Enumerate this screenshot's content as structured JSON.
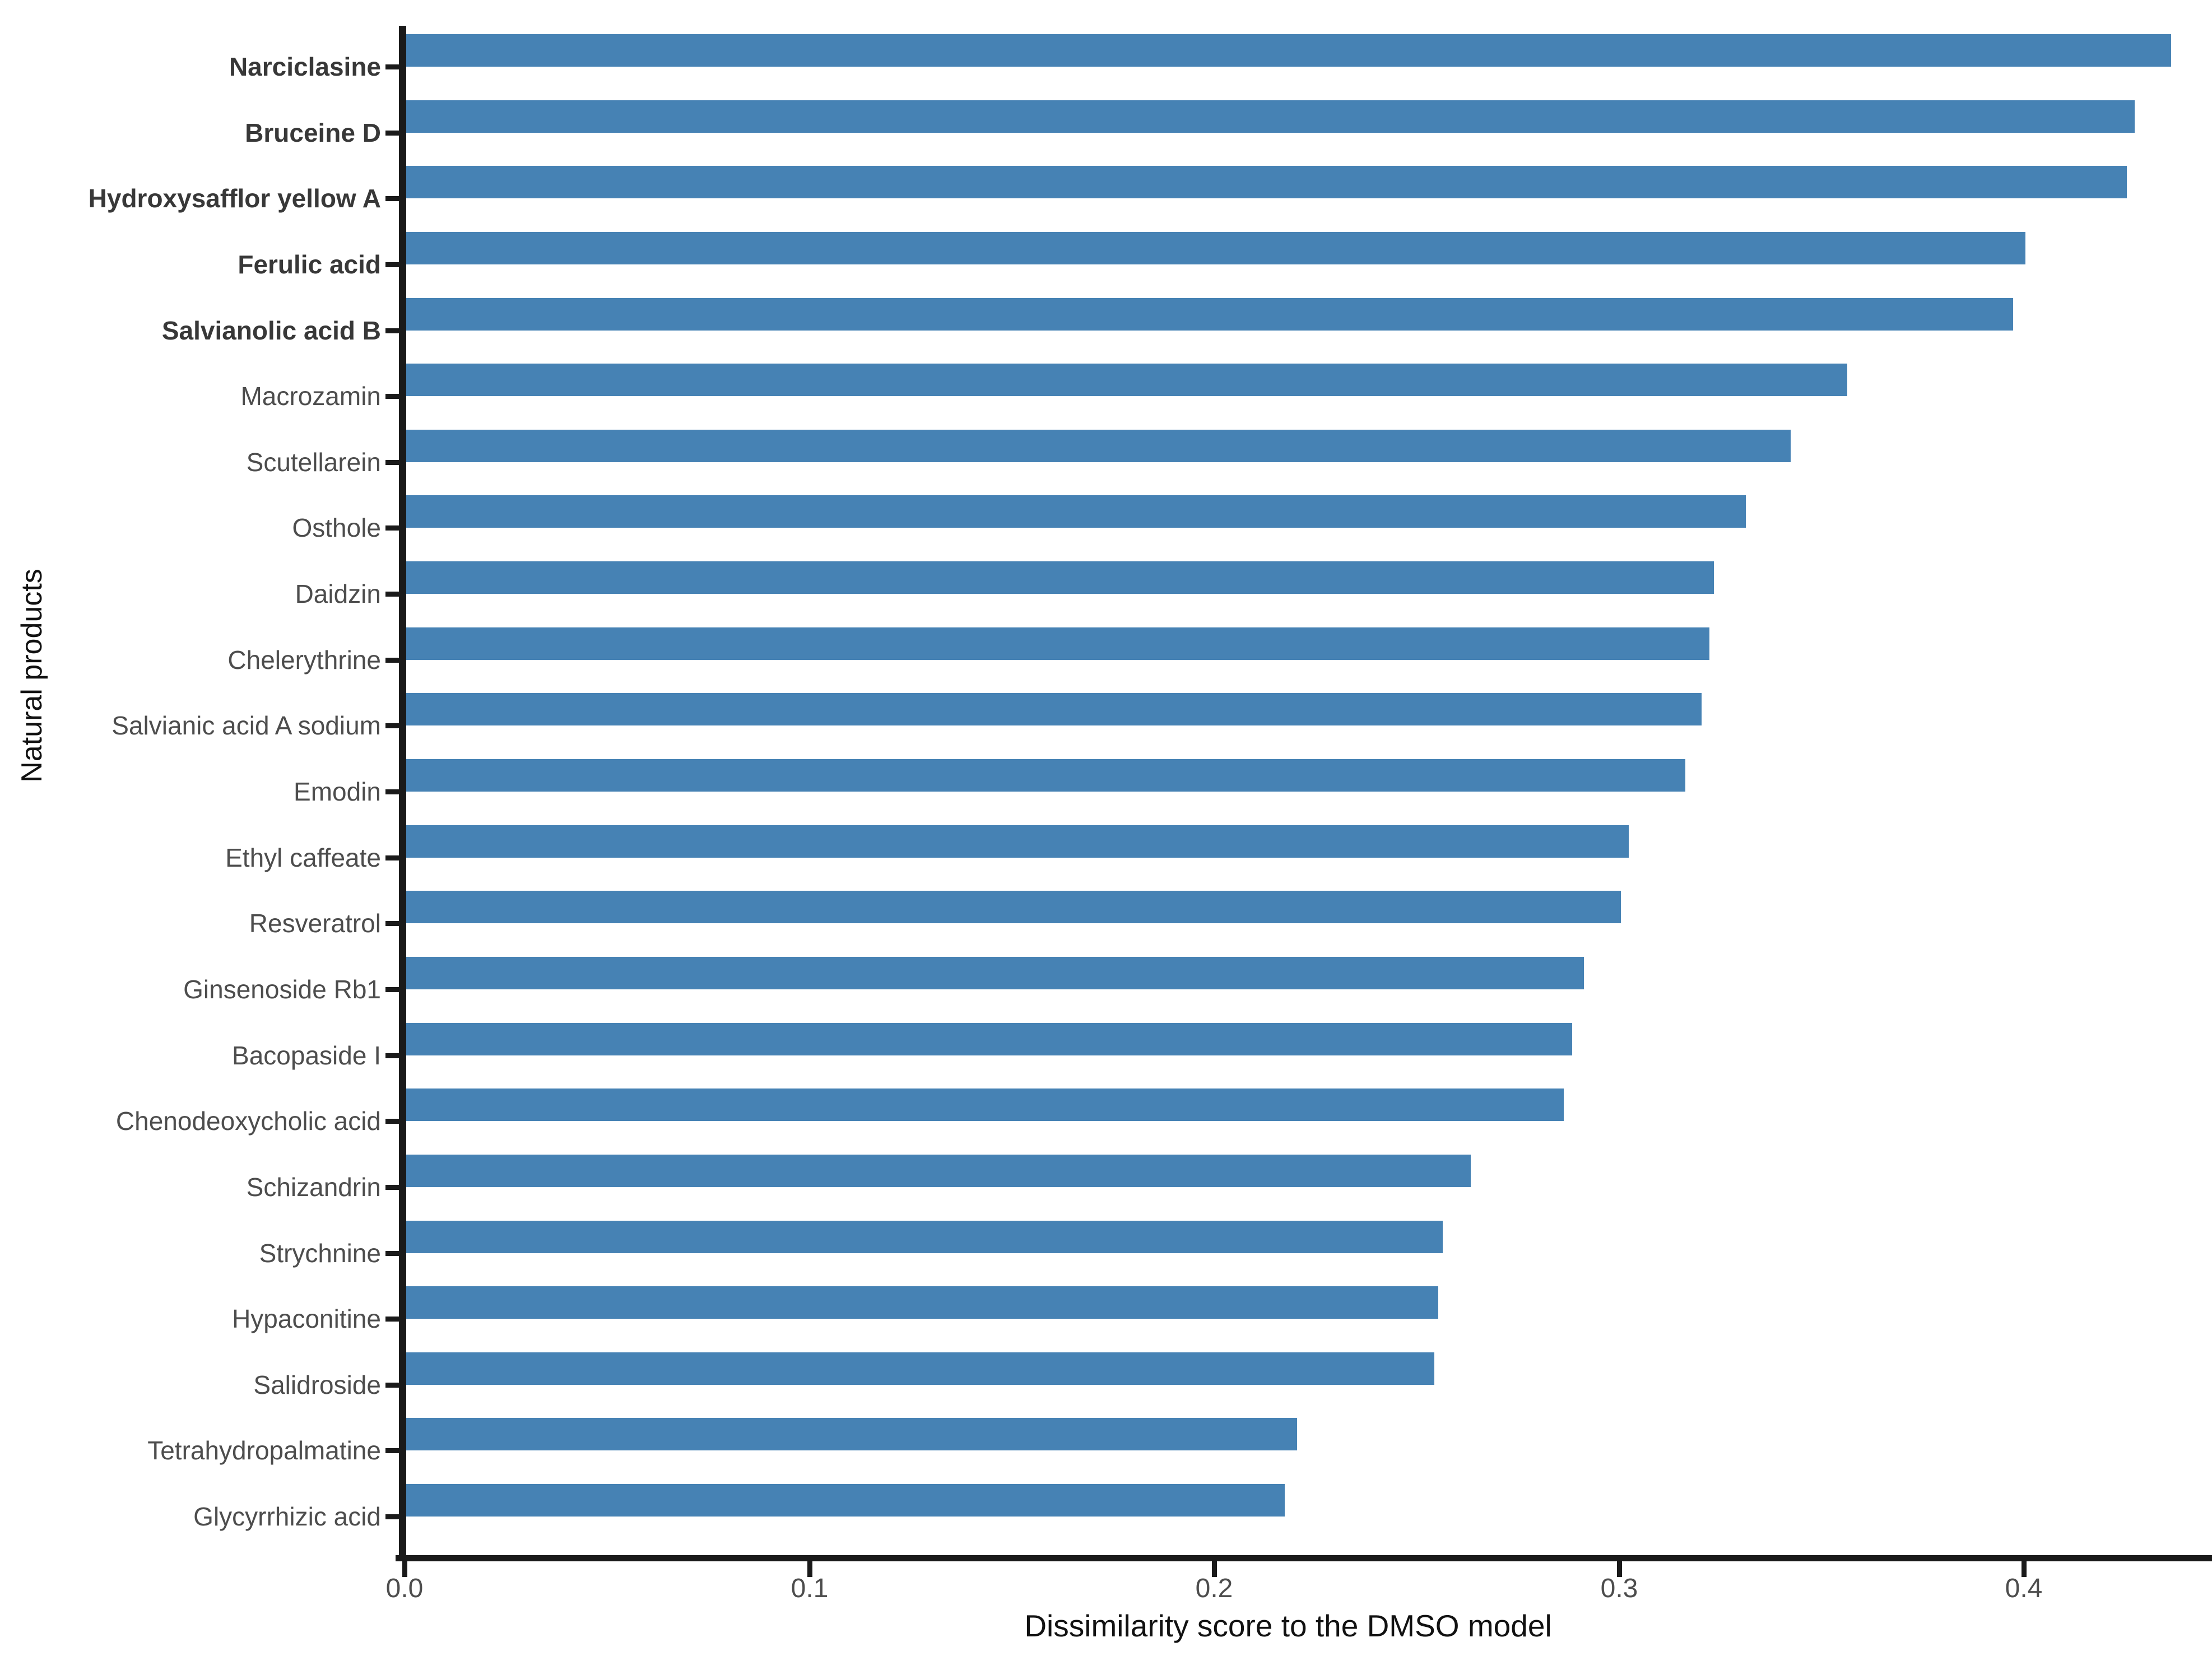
{
  "chart_data": {
    "type": "bar",
    "orientation": "horizontal",
    "title": "",
    "xlabel": "Dissimilarity score to the DMSO model",
    "ylabel": "Natural products",
    "categories": [
      "Narciclasine",
      "Bruceine D",
      "Hydroxysafflor yellow A",
      "Ferulic acid",
      "Salvianolic acid B",
      "Macrozamin",
      "Scutellarein",
      "Osthole",
      "Daidzin",
      "Chelerythrine",
      "Salvianic acid A sodium",
      "Emodin",
      "Ethyl caffeate",
      "Resveratrol",
      "Ginsenoside Rb1",
      "Bacopaside I",
      "Chenodeoxycholic acid",
      "Schizandrin",
      "Strychnine",
      "Hypaconitine",
      "Salidroside",
      "Tetrahydropalmatine",
      "Glycyrrhizic acid"
    ],
    "values": [
      0.436,
      0.427,
      0.425,
      0.4,
      0.397,
      0.356,
      0.342,
      0.331,
      0.323,
      0.322,
      0.32,
      0.316,
      0.302,
      0.3,
      0.291,
      0.288,
      0.286,
      0.263,
      0.256,
      0.255,
      0.254,
      0.22,
      0.217
    ],
    "bold_categories": [
      "Narciclasine",
      "Bruceine D",
      "Hydroxysafflor yellow A",
      "Ferulic acid",
      "Salvianolic acid B"
    ],
    "x_ticks": [
      {
        "label": "0.0",
        "value": 0.0
      },
      {
        "label": "0.1",
        "value": 0.1
      },
      {
        "label": "0.2",
        "value": 0.2
      },
      {
        "label": "0.3",
        "value": 0.3
      },
      {
        "label": "0.4",
        "value": 0.4
      }
    ],
    "xlim": [
      0.0,
      0.447
    ],
    "grid": "off",
    "legend": "none",
    "colors": {
      "bar": "#4682b4",
      "axis_line": "#1a1a1a",
      "category_label": "#4d4d4d",
      "category_label_bold": "#383838",
      "tick_label": "#4d4d4d",
      "axis_title": "#111111",
      "background": "#ffffff"
    }
  }
}
